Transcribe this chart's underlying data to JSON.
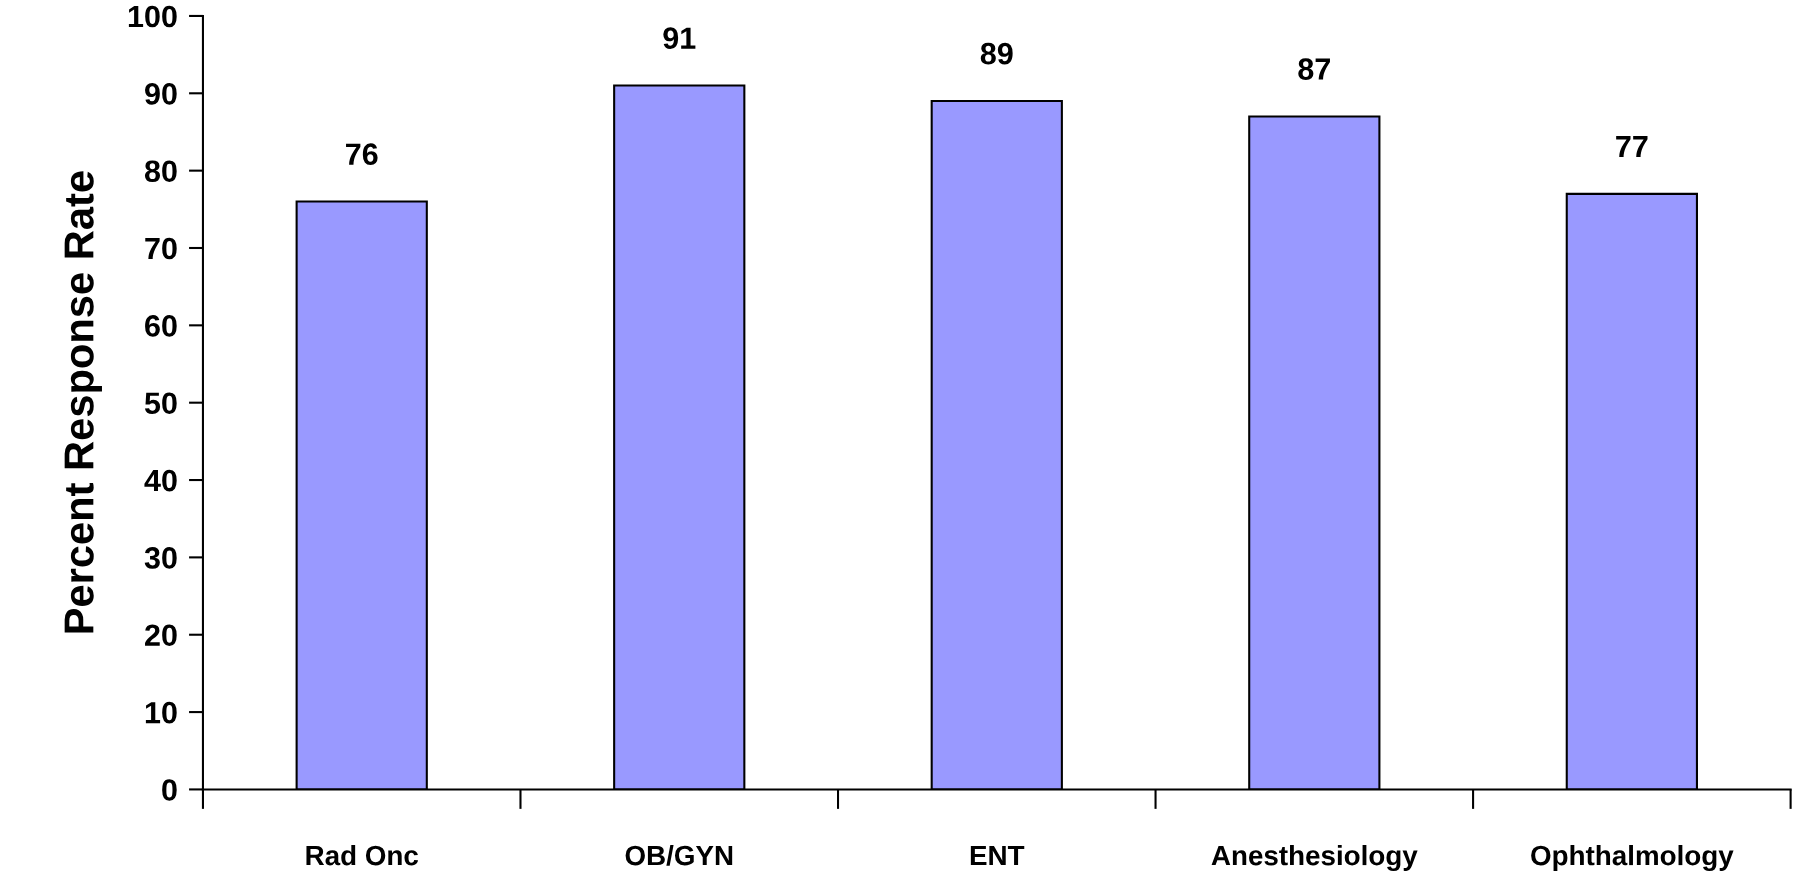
{
  "chart_data": {
    "type": "bar",
    "ylabel": "Percent Response Rate",
    "categories": [
      "Rad Onc",
      "OB/GYN",
      "ENT",
      "Anesthesiology",
      "Ophthalmology"
    ],
    "values": [
      76,
      91,
      89,
      87,
      77
    ],
    "color": "#9999ff",
    "ylim": [
      0,
      100
    ],
    "yticks": [
      0,
      10,
      20,
      30,
      40,
      50,
      60,
      70,
      80,
      90,
      100
    ],
    "data_labels": true,
    "grid": false,
    "legend": false
  }
}
